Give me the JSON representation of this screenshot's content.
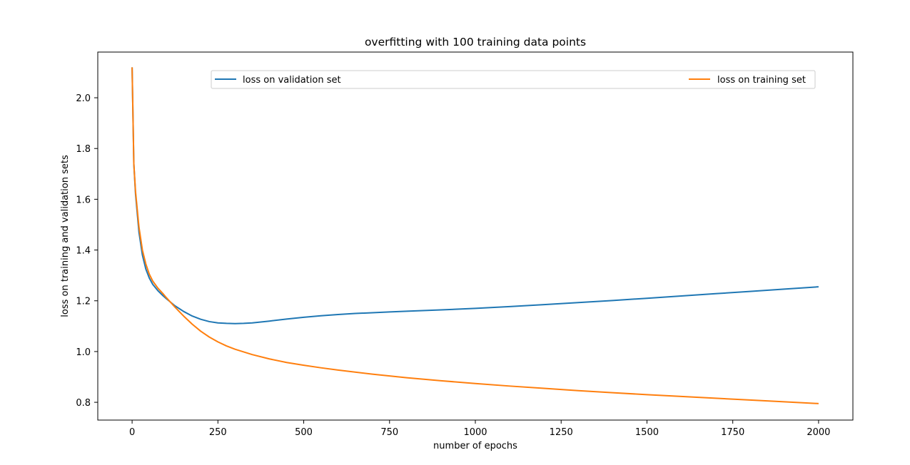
{
  "chart_data": {
    "type": "line",
    "title": "overfitting with 100 training data points",
    "xlabel": "number of epochs",
    "ylabel": "loss on training and validation sets",
    "xlim": [
      -100,
      2100
    ],
    "ylim": [
      0.73,
      2.18
    ],
    "xticks": [
      0,
      250,
      500,
      750,
      1000,
      1250,
      1500,
      1750,
      2000
    ],
    "xtick_labels": [
      "0",
      "250",
      "500",
      "750",
      "1000",
      "1250",
      "1500",
      "1750",
      "2000"
    ],
    "yticks": [
      0.8,
      1.0,
      1.2,
      1.4,
      1.6,
      1.8,
      2.0
    ],
    "ytick_labels": [
      "0.8",
      "1.0",
      "1.2",
      "1.4",
      "1.6",
      "1.8",
      "2.0"
    ],
    "grid": false,
    "legend": "upper center, two columns",
    "series": [
      {
        "name": "loss on validation set",
        "color": "#1f77b4",
        "x": [
          0,
          5,
          10,
          20,
          30,
          40,
          50,
          60,
          75,
          90,
          100,
          125,
          150,
          175,
          200,
          225,
          250,
          275,
          300,
          325,
          350,
          400,
          450,
          500,
          550,
          600,
          650,
          700,
          750,
          800,
          900,
          1000,
          1100,
          1200,
          1300,
          1400,
          1500,
          1600,
          1700,
          1800,
          1900,
          2000
        ],
        "values": [
          2.12,
          1.74,
          1.62,
          1.47,
          1.38,
          1.325,
          1.29,
          1.265,
          1.24,
          1.22,
          1.208,
          1.18,
          1.158,
          1.14,
          1.127,
          1.118,
          1.113,
          1.111,
          1.11,
          1.111,
          1.113,
          1.12,
          1.128,
          1.135,
          1.141,
          1.146,
          1.15,
          1.153,
          1.156,
          1.159,
          1.164,
          1.17,
          1.177,
          1.185,
          1.193,
          1.201,
          1.21,
          1.219,
          1.228,
          1.237,
          1.246,
          1.255
        ]
      },
      {
        "name": "loss on training set",
        "color": "#ff7f0e",
        "x": [
          0,
          5,
          10,
          20,
          30,
          40,
          50,
          60,
          75,
          90,
          100,
          125,
          150,
          175,
          200,
          225,
          250,
          275,
          300,
          350,
          400,
          450,
          500,
          550,
          600,
          700,
          800,
          900,
          1000,
          1100,
          1200,
          1300,
          1400,
          1500,
          1600,
          1700,
          1800,
          1900,
          2000
        ],
        "values": [
          2.12,
          1.74,
          1.63,
          1.49,
          1.4,
          1.345,
          1.305,
          1.278,
          1.25,
          1.228,
          1.212,
          1.175,
          1.14,
          1.108,
          1.08,
          1.057,
          1.038,
          1.022,
          1.009,
          0.988,
          0.971,
          0.957,
          0.946,
          0.936,
          0.927,
          0.911,
          0.897,
          0.885,
          0.874,
          0.864,
          0.855,
          0.846,
          0.838,
          0.83,
          0.823,
          0.816,
          0.809,
          0.802,
          0.795
        ]
      }
    ]
  }
}
